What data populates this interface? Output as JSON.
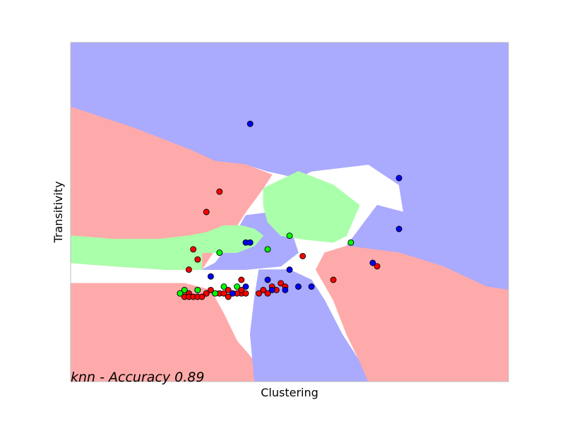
{
  "chart_data": {
    "type": "scatter",
    "title": "",
    "xlabel": "Clustering",
    "ylabel": "Transitivity",
    "annotation": "knn - Accuracy 0.89",
    "xlim": [
      0,
      1
    ],
    "ylim": [
      0,
      1
    ],
    "xticks": "none",
    "yticks": "none",
    "grid": false,
    "legend": "none",
    "region_colors": {
      "red": "#ffaaaa",
      "green": "#aaffaa",
      "blue": "#aaaaff"
    },
    "point_colors": {
      "red": "#ff0000",
      "green": "#00ff00",
      "blue": "#0000ff"
    },
    "decision_regions": [
      {
        "class": "blue",
        "polygon": [
          [
            0,
            1
          ],
          [
            1,
            1
          ],
          [
            1,
            0.27
          ],
          [
            0.95,
            0.28
          ],
          [
            0.85,
            0.34
          ],
          [
            0.75,
            0.38
          ],
          [
            0.63,
            0.4
          ],
          [
            0.7,
            0.52
          ],
          [
            0.76,
            0.5
          ],
          [
            0.75,
            0.58
          ],
          [
            0.68,
            0.64
          ],
          [
            0.55,
            0.62
          ],
          [
            0.52,
            0.6
          ],
          [
            0.45,
            0.62
          ],
          [
            0.4,
            0.64
          ],
          [
            0.33,
            0.65
          ],
          [
            0.28,
            0.68
          ],
          [
            0.22,
            0.71
          ],
          [
            0.14,
            0.75
          ],
          [
            0.07,
            0.78
          ],
          [
            0,
            0.81
          ]
        ]
      },
      {
        "class": "red",
        "polygon": [
          [
            0,
            0.81
          ],
          [
            0.07,
            0.78
          ],
          [
            0.14,
            0.75
          ],
          [
            0.22,
            0.71
          ],
          [
            0.28,
            0.68
          ],
          [
            0.33,
            0.65
          ],
          [
            0.4,
            0.64
          ],
          [
            0.46,
            0.61
          ],
          [
            0.44,
            0.57
          ],
          [
            0.4,
            0.5
          ],
          [
            0.37,
            0.44
          ],
          [
            0.35,
            0.41
          ],
          [
            0.33,
            0.39
          ],
          [
            0.3,
            0.33
          ],
          [
            0.22,
            0.33
          ],
          [
            0.1,
            0.34
          ],
          [
            0,
            0.35
          ]
        ]
      },
      {
        "class": "blue",
        "polygon": [
          [
            0.3,
            0.33
          ],
          [
            0.4,
            0.33
          ],
          [
            0.48,
            0.34
          ],
          [
            0.52,
            0.38
          ],
          [
            0.5,
            0.46
          ],
          [
            0.46,
            0.5
          ],
          [
            0.4,
            0.49
          ],
          [
            0.36,
            0.4
          ],
          [
            0.33,
            0.35
          ]
        ]
      },
      {
        "class": "green",
        "polygon": [
          [
            0.44,
            0.57
          ],
          [
            0.52,
            0.62
          ],
          [
            0.56,
            0.6
          ],
          [
            0.6,
            0.58
          ],
          [
            0.66,
            0.52
          ],
          [
            0.63,
            0.43
          ],
          [
            0.6,
            0.41
          ],
          [
            0.53,
            0.42
          ],
          [
            0.48,
            0.43
          ],
          [
            0.45,
            0.47
          ],
          [
            0.44,
            0.52
          ]
        ]
      },
      {
        "class": "green",
        "polygon": [
          [
            0.3,
            0.38
          ],
          [
            0.34,
            0.38
          ],
          [
            0.38,
            0.38
          ],
          [
            0.42,
            0.4
          ],
          [
            0.44,
            0.43
          ],
          [
            0.42,
            0.45
          ],
          [
            0.39,
            0.46
          ],
          [
            0.35,
            0.46
          ],
          [
            0.31,
            0.44
          ],
          [
            0.27,
            0.43
          ],
          [
            0.2,
            0.42
          ],
          [
            0.1,
            0.42
          ],
          [
            0,
            0.43
          ],
          [
            0,
            0.35
          ],
          [
            0.1,
            0.34
          ],
          [
            0.22,
            0.33
          ],
          [
            0.3,
            0.33
          ]
        ]
      },
      {
        "class": "red",
        "polygon": [
          [
            0,
            0
          ],
          [
            0.42,
            0
          ],
          [
            0.42,
            0.06
          ],
          [
            0.38,
            0.12
          ],
          [
            0.35,
            0.2
          ],
          [
            0.32,
            0.27
          ],
          [
            0.26,
            0.29
          ],
          [
            0.15,
            0.29
          ],
          [
            0,
            0.29
          ]
        ]
      },
      {
        "class": "blue",
        "polygon": [
          [
            0.42,
            0
          ],
          [
            0.68,
            0
          ],
          [
            0.66,
            0.06
          ],
          [
            0.62,
            0.14
          ],
          [
            0.58,
            0.24
          ],
          [
            0.55,
            0.3
          ],
          [
            0.5,
            0.33
          ],
          [
            0.43,
            0.33
          ],
          [
            0.42,
            0.25
          ],
          [
            0.41,
            0.14
          ]
        ]
      },
      {
        "class": "red",
        "polygon": [
          [
            0.68,
            0
          ],
          [
            1,
            0
          ],
          [
            1,
            0.27
          ],
          [
            0.95,
            0.28
          ],
          [
            0.85,
            0.34
          ],
          [
            0.75,
            0.38
          ],
          [
            0.63,
            0.4
          ],
          [
            0.58,
            0.38
          ],
          [
            0.56,
            0.33
          ],
          [
            0.6,
            0.24
          ],
          [
            0.63,
            0.14
          ],
          [
            0.66,
            0.06
          ]
        ]
      }
    ],
    "series": [
      {
        "name": "red",
        "points": [
          [
            0.31,
            0.5
          ],
          [
            0.34,
            0.56
          ],
          [
            0.28,
            0.39
          ],
          [
            0.29,
            0.36
          ],
          [
            0.27,
            0.33
          ],
          [
            0.53,
            0.37
          ],
          [
            0.6,
            0.3
          ],
          [
            0.7,
            0.34
          ],
          [
            0.39,
            0.3
          ],
          [
            0.46,
            0.28
          ],
          [
            0.48,
            0.29
          ],
          [
            0.49,
            0.28
          ],
          [
            0.44,
            0.27
          ],
          [
            0.43,
            0.26
          ],
          [
            0.39,
            0.26
          ],
          [
            0.36,
            0.27
          ],
          [
            0.34,
            0.26
          ],
          [
            0.31,
            0.26
          ],
          [
            0.29,
            0.27
          ],
          [
            0.27,
            0.26
          ],
          [
            0.26,
            0.27
          ],
          [
            0.25,
            0.26
          ],
          [
            0.26,
            0.25
          ],
          [
            0.27,
            0.25
          ],
          [
            0.28,
            0.25
          ],
          [
            0.29,
            0.25
          ],
          [
            0.3,
            0.25
          ],
          [
            0.31,
            0.26
          ],
          [
            0.32,
            0.27
          ],
          [
            0.33,
            0.26
          ],
          [
            0.35,
            0.26
          ],
          [
            0.36,
            0.25
          ],
          [
            0.37,
            0.26
          ],
          [
            0.38,
            0.26
          ],
          [
            0.39,
            0.27
          ],
          [
            0.4,
            0.26
          ],
          [
            0.45,
            0.26
          ],
          [
            0.47,
            0.27
          ]
        ]
      },
      {
        "name": "green",
        "points": [
          [
            0.34,
            0.38
          ],
          [
            0.45,
            0.39
          ],
          [
            0.5,
            0.43
          ],
          [
            0.64,
            0.41
          ],
          [
            0.26,
            0.27
          ],
          [
            0.29,
            0.27
          ],
          [
            0.33,
            0.26
          ],
          [
            0.35,
            0.28
          ],
          [
            0.38,
            0.28
          ],
          [
            0.25,
            0.26
          ]
        ]
      },
      {
        "name": "blue",
        "points": [
          [
            0.41,
            0.76
          ],
          [
            0.75,
            0.6
          ],
          [
            0.75,
            0.45
          ],
          [
            0.4,
            0.41
          ],
          [
            0.41,
            0.41
          ],
          [
            0.32,
            0.31
          ],
          [
            0.5,
            0.33
          ],
          [
            0.45,
            0.3
          ],
          [
            0.49,
            0.27
          ],
          [
            0.52,
            0.28
          ],
          [
            0.55,
            0.28
          ],
          [
            0.69,
            0.35
          ],
          [
            0.4,
            0.28
          ],
          [
            0.46,
            0.27
          ],
          [
            0.37,
            0.26
          ]
        ]
      }
    ]
  }
}
